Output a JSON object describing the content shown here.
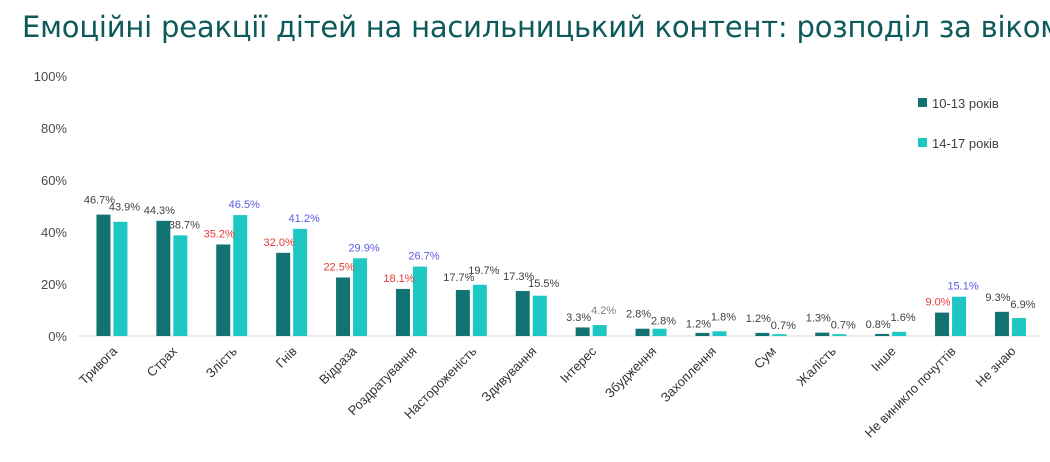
{
  "title": "Емоційні реакції дітей на насильницький контент: розподіл за віком",
  "colors": {
    "series_a": "#137373",
    "series_b": "#1cc7c4",
    "label_default": "#404040",
    "label_red": "#e53935",
    "label_blue": "#5b5be6",
    "label_grey": "#7f7f7f",
    "axis_line": "#d9d9d9"
  },
  "chart_data": {
    "type": "bar",
    "title": "Емоційні реакції дітей на насильницький контент: розподіл за віком",
    "xlabel": "",
    "ylabel": "",
    "ylim": [
      0,
      100
    ],
    "y_ticks": [
      "0%",
      "20%",
      "40%",
      "60%",
      "80%",
      "100%"
    ],
    "y_tick_values": [
      0,
      20,
      40,
      60,
      80,
      100
    ],
    "grid": false,
    "legend_position": "top-right",
    "categories": [
      "Тривога",
      "Страх",
      "Злість",
      "Гнів",
      "Відраза",
      "Роздратування",
      "Настороженість",
      "Здивування",
      "Інтерес",
      "Збудження",
      "Захоплення",
      "Сум",
      "Жалість",
      "Інше",
      "Не виникло почуттів",
      "Не знаю"
    ],
    "series": [
      {
        "name": "10-13 років",
        "values": [
          46.7,
          44.3,
          35.2,
          32.0,
          22.5,
          18.1,
          17.7,
          17.3,
          3.3,
          2.8,
          1.2,
          1.2,
          1.3,
          0.8,
          9.0,
          9.3
        ],
        "labels": [
          "46.7%",
          "44.3%",
          "35.2%",
          "32.0%",
          "22.5%",
          "18.1%",
          "17.7%",
          "17.3%",
          "3.3%",
          "2.8%",
          "1.2%",
          "1.2%",
          "1.3%",
          "0.8%",
          "9.0%",
          "9.3%"
        ],
        "label_colors": [
          "default",
          "default",
          "red",
          "red",
          "red",
          "red",
          "default",
          "default",
          "default",
          "default",
          "default",
          "default",
          "default",
          "default",
          "red",
          "default"
        ]
      },
      {
        "name": "14-17 років",
        "values": [
          43.9,
          38.7,
          46.5,
          41.2,
          29.9,
          26.7,
          19.7,
          15.5,
          4.2,
          2.8,
          1.8,
          0.7,
          0.7,
          1.6,
          15.1,
          6.9
        ],
        "labels": [
          "43.9%",
          "38.7%",
          "46.5%",
          "41.2%",
          "29.9%",
          "26.7%",
          "19.7%",
          "15.5%",
          "4.2%",
          "2.8%",
          "1.8%",
          "0.7%",
          "0.7%",
          "1.6%",
          "15.1%",
          "6.9%"
        ],
        "label_colors": [
          "default",
          "default",
          "blue",
          "blue",
          "blue",
          "blue",
          "default",
          "default",
          "grey",
          "default",
          "default",
          "default",
          "default",
          "default",
          "blue",
          "default"
        ]
      }
    ]
  }
}
